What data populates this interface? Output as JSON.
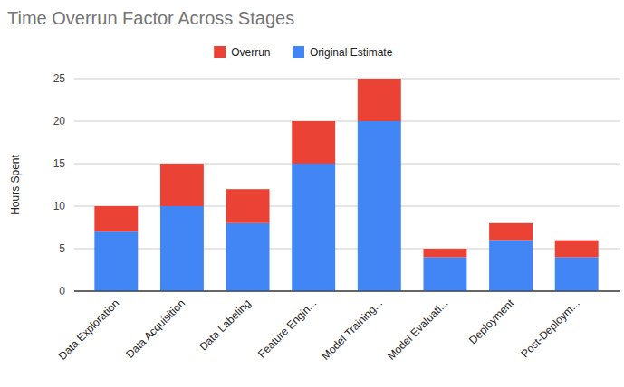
{
  "chart_data": {
    "type": "bar",
    "title": "Time Overrun Factor Across Stages",
    "y_label": "Hours Spent",
    "categories": [
      "Data Exploration",
      "Data Acquisition",
      "Data Labeling",
      "Feature Engin...",
      "Model Training...",
      "Model Evaluati...",
      "Deployment",
      "Post-Deploym..."
    ],
    "series": [
      {
        "name": "Original Estimate",
        "color": "#4285f4",
        "values": [
          7,
          10,
          8,
          15,
          20,
          4,
          6,
          4
        ]
      },
      {
        "name": "Overrun",
        "color": "#ea4335",
        "values": [
          3,
          5,
          4,
          5,
          5,
          1,
          2,
          2
        ]
      }
    ],
    "stacked": true,
    "ylim": [
      0,
      25
    ],
    "yticks": [
      0,
      5,
      10,
      15,
      20,
      25
    ],
    "grid": true,
    "legend": "top"
  }
}
